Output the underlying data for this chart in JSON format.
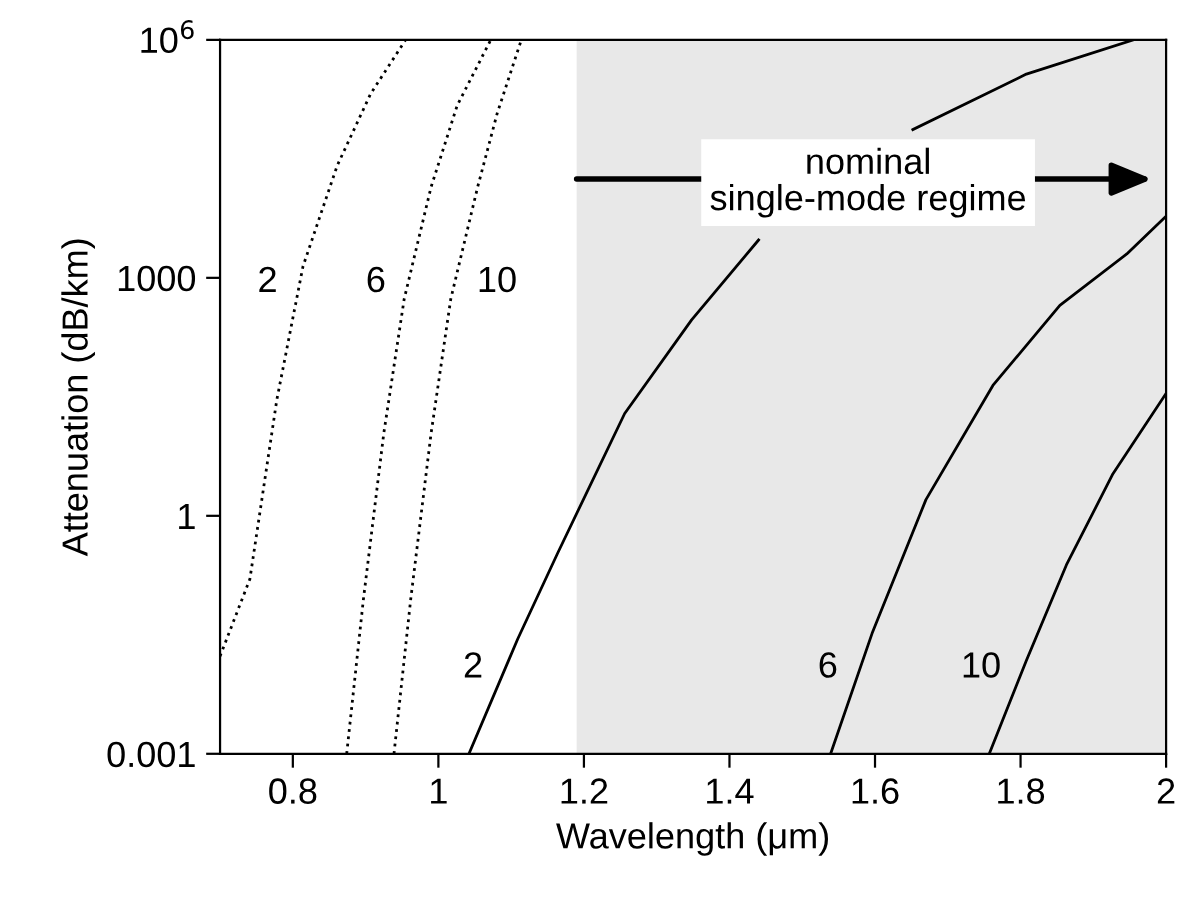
{
  "chart_data": {
    "type": "line",
    "xlabel": "Wavelength (μm)",
    "ylabel": "Attenuation (dB/km)",
    "log": "y",
    "xlim": [
      0.7,
      2.0
    ],
    "xticks": [
      0.8,
      1.0,
      1.2,
      1.4,
      1.6,
      1.8,
      2.0
    ],
    "ylim": [
      0.001,
      1000000
    ],
    "yticks": [
      0.001,
      1,
      1000,
      {
        "value": 1000000,
        "label": "10$^{6}$"
      }
    ],
    "grid": false,
    "legend": false,
    "bands": [
      {
        "axis": "x",
        "from": 1.19,
        "to": 2.0,
        "color": "#e8e8e8"
      }
    ],
    "annotations": [
      "nominal\nsingle-mode regime"
    ],
    "series": [
      {
        "name": "2",
        "color": "#000000",
        "line_style": "dotted",
        "x": [
          0.7,
          0.741,
          0.778,
          0.814,
          0.861,
          0.907,
          0.955
        ],
        "values": [
          0.017,
          0.16,
          29,
          1400,
          26000,
          210000,
          1000000
        ]
      },
      {
        "name": "6",
        "color": "#000000",
        "line_style": "dotted",
        "x": [
          0.874,
          0.897,
          0.925,
          0.953,
          0.99,
          1.026,
          1.072
        ],
        "values": [
          0.001,
          0.089,
          11,
          540,
          14000,
          150000,
          1000000
        ]
      },
      {
        "name": "10",
        "color": "#000000",
        "line_style": "dotted",
        "x": [
          0.939,
          0.962,
          0.99,
          1.017,
          1.054,
          1.081,
          1.114
        ],
        "values": [
          0.001,
          0.089,
          11,
          540,
          14000,
          120000,
          1000000
        ]
      },
      {
        "name": "2",
        "color": "#000000",
        "line_style": "solid",
        "x": [
          1.042,
          1.109,
          1.164,
          1.256,
          1.348,
          1.44,
          1.55,
          1.652,
          1.808,
          1.955
        ],
        "values": [
          0.001,
          0.028,
          0.34,
          19.5,
          295,
          3000,
          null,
          74000,
          370000,
          1000000
        ]
      },
      {
        "name": "6",
        "color": "#000000",
        "line_style": "solid",
        "x": [
          1.539,
          1.596,
          1.67,
          1.762,
          1.854,
          1.946,
          2.0
        ],
        "values": [
          0.001,
          0.033,
          1.6,
          44,
          450,
          2000,
          6000
        ]
      },
      {
        "name": "10",
        "color": "#000000",
        "line_style": "solid",
        "x": [
          1.757,
          1.808,
          1.863,
          1.927,
          2.0
        ],
        "values": [
          0.001,
          0.015,
          0.24,
          3.4,
          35
        ]
      }
    ]
  }
}
